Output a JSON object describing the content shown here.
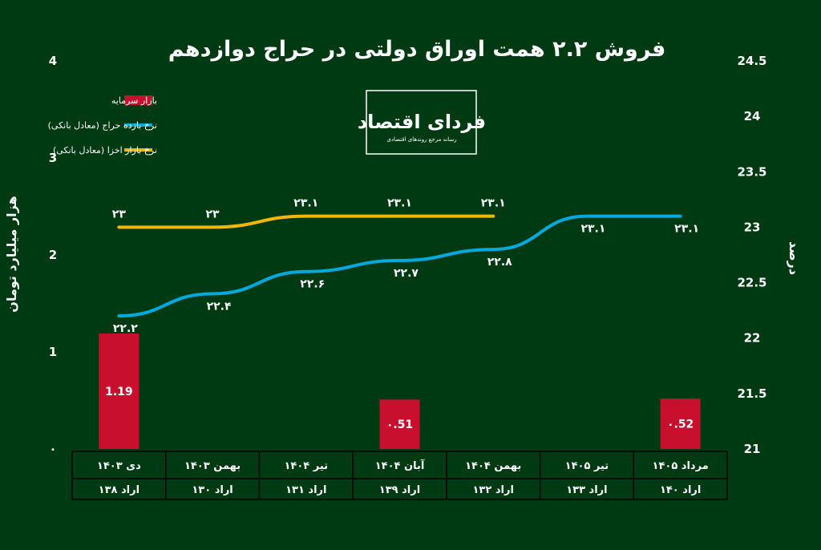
{
  "chart_data": {
    "type": "bar",
    "title": "فروش ۲.۲ همت اوراق دولتی در حراج دوازدهم",
    "ylabel_left": "هزار میلیارد تومان",
    "ylabel_right": "درصد",
    "y_left_lim": [
      0,
      4
    ],
    "y_left_ticks": [
      "۰",
      "1",
      "2",
      "3",
      "4"
    ],
    "y_right_lim": [
      21,
      24.5
    ],
    "y_right_ticks": [
      "21",
      "21.5",
      "22",
      "22.5",
      "23",
      "23.5",
      "24",
      "24.5"
    ],
    "categories": [
      {
        "month": "دی ۱۴۰۳",
        "auction": "اراد ۱۳۸"
      },
      {
        "month": "بهمن ۱۴۰۳",
        "auction": "اراد ۱۳۰"
      },
      {
        "month": "تیر ۱۴۰۴",
        "auction": "اراد ۱۳۱"
      },
      {
        "month": "آبان ۱۴۰۴",
        "auction": "اراد ۱۳۹"
      },
      {
        "month": "بهمن ۱۴۰۴",
        "auction": "اراد ۱۳۲"
      },
      {
        "month": "تیر ۱۴۰۵",
        "auction": "اراد ۱۳۳"
      },
      {
        "month": "مرداد ۱۴۰۵",
        "auction": "اراد ۱۴۰"
      }
    ],
    "series": [
      {
        "name": "بازار سرمایه",
        "kind": "bar",
        "axis": "left",
        "color": "#c8102e",
        "values": [
          1.19,
          null,
          null,
          0.51,
          null,
          null,
          0.52
        ],
        "labels": [
          "1.19",
          "",
          "",
          "۰.51",
          "",
          "",
          "۰.52"
        ]
      },
      {
        "name": "نرخ بازده حراج (معادل بانکی)",
        "kind": "line",
        "axis": "right",
        "color": "#00a9e0",
        "values": [
          22.2,
          22.4,
          22.6,
          22.7,
          22.8,
          23.1,
          23.1
        ],
        "labels": [
          "۲۲.۲",
          "۲۲.۴",
          "۲۲.۶",
          "۲۲.۷",
          "۲۲.۸",
          "۲۳.۱",
          "۲۳.۱"
        ]
      },
      {
        "name": "نرخ بازار اخزا (معادل بانکی)",
        "kind": "line",
        "axis": "right",
        "color": "#f2b705",
        "values": [
          23,
          23,
          23.1,
          23.1,
          23.1,
          null,
          null
        ],
        "labels": [
          "۲۳",
          "۲۳",
          "۲۳.۱",
          "۲۳.۱",
          "۲۳.۱",
          "",
          ""
        ]
      }
    ],
    "legend_position": "top-left",
    "grid": false
  },
  "logo": {
    "main": "فردای اقتصاد",
    "sub": "رسانه مرجع روندهای اقتصادی"
  }
}
